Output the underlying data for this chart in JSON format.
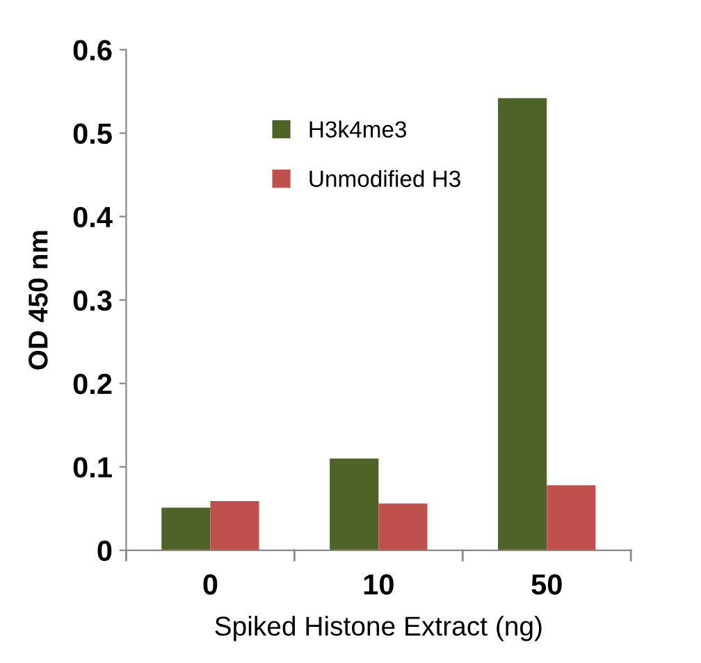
{
  "chart_data": {
    "type": "bar",
    "xlabel": "Spiked Histone Extract (ng)",
    "ylabel": "OD 450 nm",
    "categories": [
      "0",
      "10",
      "50"
    ],
    "series": [
      {
        "name": "H3k4me3",
        "color": "#4f6228",
        "values": [
          0.051,
          0.11,
          0.542
        ]
      },
      {
        "name": "Unmodified H3",
        "color": "#c0504d",
        "values": [
          0.059,
          0.056,
          0.078
        ]
      }
    ],
    "ylim": [
      0,
      0.6
    ],
    "yticks": [
      {
        "value": 0,
        "label": "0"
      },
      0.1,
      0.2,
      0.3,
      0.4,
      0.5,
      0.6
    ],
    "grid": false,
    "legend": "top left"
  }
}
